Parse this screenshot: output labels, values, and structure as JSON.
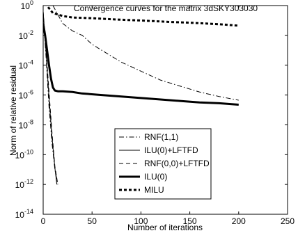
{
  "chart_data": {
    "type": "line",
    "title": "Convergence curves for the matrix 3dSKY303030",
    "xlabel": "Number of iterations",
    "ylabel": "Norm of relative residual",
    "xlim": [
      0,
      250
    ],
    "ylim_exponents": [
      -14,
      0
    ],
    "y_scale": "log",
    "grid": false,
    "legend_position": "lower-center",
    "x_ticks": [
      0,
      50,
      100,
      150,
      200,
      250
    ],
    "y_tick_base": "10",
    "y_tick_exponents": [
      "0",
      "-2",
      "-4",
      "-6",
      "-8",
      "-10",
      "-12",
      "-14"
    ],
    "series": [
      {
        "name": "RNF(1,1)",
        "style": "dash-dot",
        "width": "thin",
        "x": [
          0,
          3,
          6,
          9,
          12,
          15
        ],
        "log10_y": [
          -0.5,
          -3.5,
          -6.8,
          -9.2,
          -11.0,
          -12.0
        ]
      },
      {
        "name": "ILU(0)+LFTFD",
        "style": "solid",
        "width": "thin",
        "x": [
          0,
          3,
          6,
          9,
          12,
          14
        ],
        "log10_y": [
          -0.4,
          -3.2,
          -6.2,
          -8.8,
          -10.9,
          -12.0
        ]
      },
      {
        "name": "RNF(0,0)+LFTFD",
        "style": "dashed",
        "width": "thin",
        "x": [
          0,
          3,
          6,
          9,
          12,
          15
        ],
        "log10_y": [
          -0.4,
          -3.0,
          -5.8,
          -8.5,
          -10.8,
          -12.0
        ]
      },
      {
        "name": "ILU(0)",
        "style": "solid",
        "width": "thick",
        "x": [
          0,
          2,
          4,
          6,
          8,
          10,
          12,
          15,
          20,
          30,
          40,
          60,
          80,
          100,
          120,
          140,
          160,
          180,
          200
        ],
        "log10_y": [
          -1.2,
          -2.0,
          -3.0,
          -4.0,
          -4.9,
          -5.5,
          -5.7,
          -5.75,
          -5.75,
          -5.8,
          -5.9,
          -6.0,
          -6.1,
          -6.2,
          -6.3,
          -6.4,
          -6.5,
          -6.55,
          -6.65
        ]
      },
      {
        "name": "MILU",
        "style": "dotted",
        "width": "thick",
        "x": [
          5,
          10,
          20,
          30,
          50,
          80,
          100,
          130,
          150,
          180,
          200
        ],
        "log10_y": [
          -0.1,
          -0.5,
          -0.7,
          -0.8,
          -0.85,
          -0.95,
          -1.0,
          -1.1,
          -1.15,
          -1.25,
          -1.35
        ]
      },
      {
        "name": "",
        "style": "dash-dot",
        "width": "thin",
        "x": [
          10,
          15,
          20,
          30,
          40,
          50,
          60,
          80,
          100,
          120,
          140,
          160,
          180,
          200
        ],
        "log10_y": [
          0.0,
          -0.6,
          -1.2,
          -1.7,
          -2.0,
          -2.6,
          -3.0,
          -3.8,
          -4.4,
          -5.0,
          -5.4,
          -5.8,
          -6.1,
          -6.35
        ]
      }
    ]
  }
}
